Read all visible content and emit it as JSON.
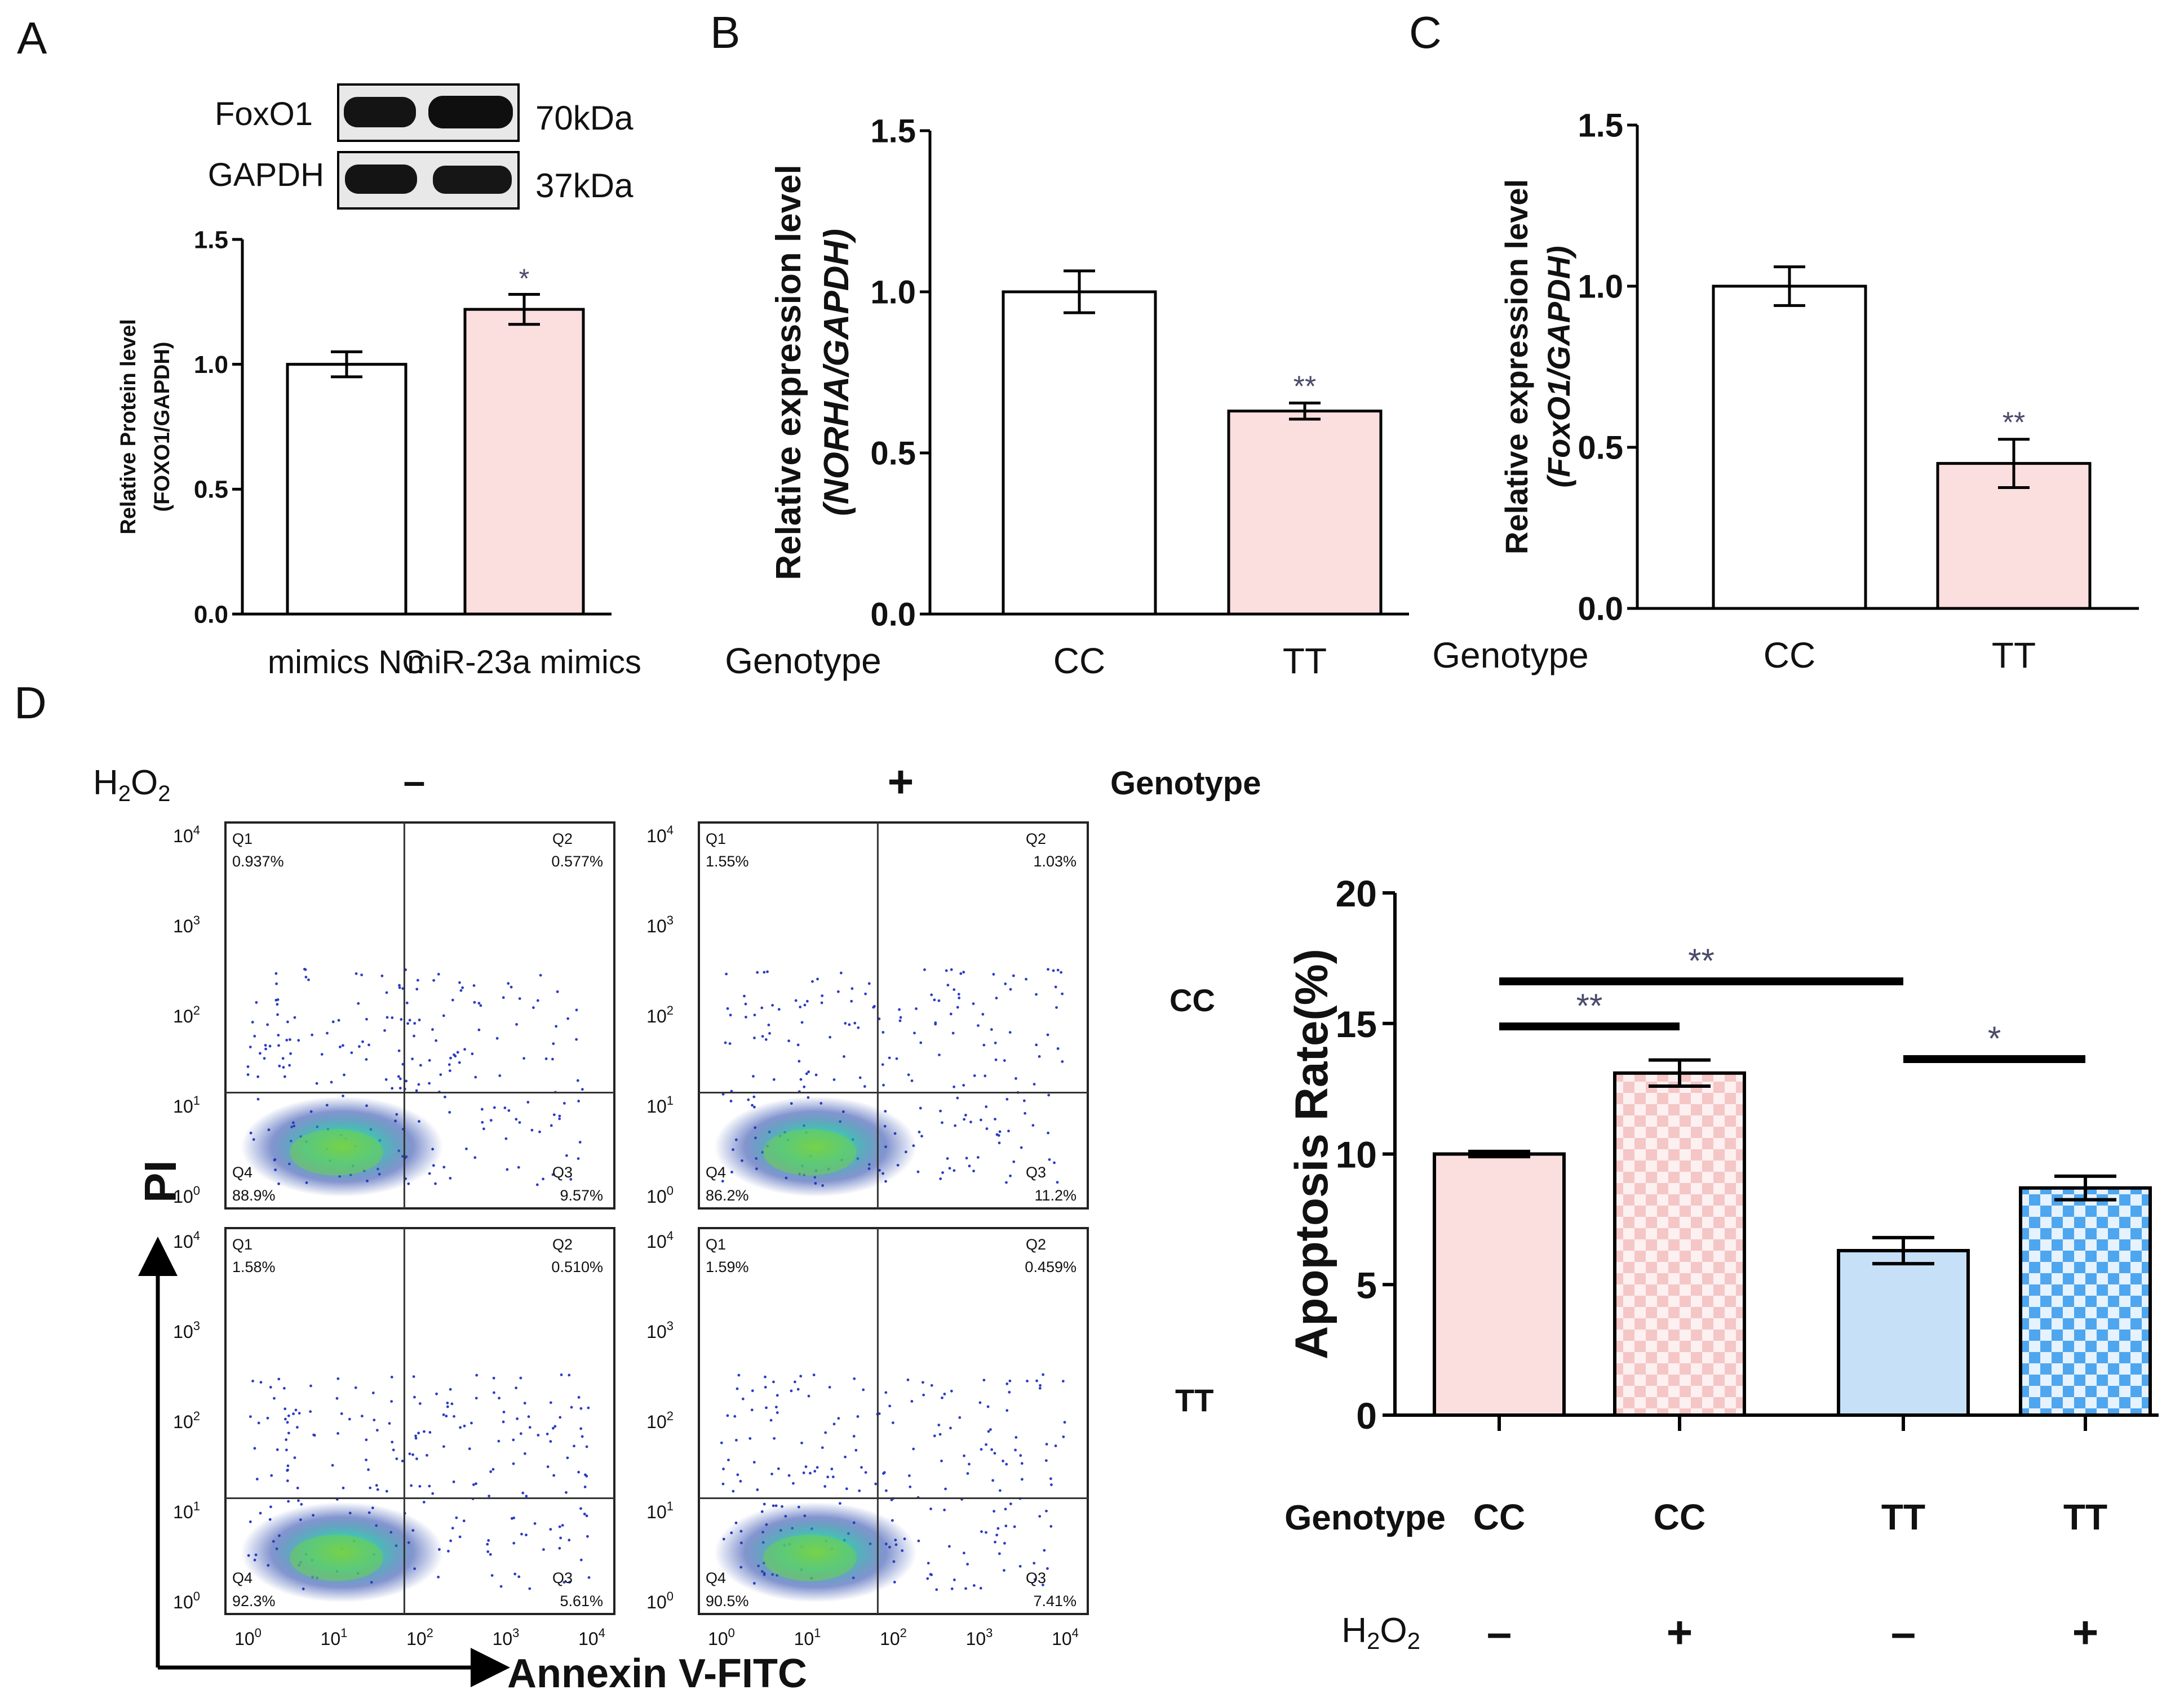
{
  "panels": {
    "A": "A",
    "B": "B",
    "C": "C",
    "D": "D"
  },
  "colors": {
    "pink": "#fbdede",
    "blue": "#c6e0f8",
    "pinkCheck": "#f5c9c9",
    "blueCheck": "#4ea6ef",
    "axis": "#000000",
    "sig": "#4a4a6a"
  },
  "western_blot": {
    "bands": [
      {
        "name": "FoxO1",
        "size": "70kDa"
      },
      {
        "name": "GAPDH",
        "size": "37kDa"
      }
    ]
  },
  "chart_data": [
    {
      "id": "A",
      "type": "bar",
      "categories": [
        "mimics NC",
        "miR-23a mimics"
      ],
      "values": [
        1.0,
        1.22
      ],
      "errors": [
        0.05,
        0.06
      ],
      "significance": [
        "",
        "*"
      ],
      "ylabel": [
        "Relative Protein level",
        "(FOXO1/GAPDH)"
      ],
      "yticks": [
        "0.0",
        "0.5",
        "1.0",
        "1.5"
      ],
      "ylim": [
        0,
        1.5
      ]
    },
    {
      "id": "B",
      "type": "bar",
      "categories": [
        "CC",
        "TT"
      ],
      "x_group_label": "Genotype",
      "values": [
        1.0,
        0.63
      ],
      "errors": [
        0.065,
        0.025
      ],
      "significance": [
        "",
        "**"
      ],
      "ylabel": [
        "Relative expression level",
        "(NORHA/GAPDH)"
      ],
      "yticks": [
        "0.0",
        "0.5",
        "1.0",
        "1.5"
      ],
      "ylim": [
        0,
        1.5
      ]
    },
    {
      "id": "C",
      "type": "bar",
      "categories": [
        "CC",
        "TT"
      ],
      "x_group_label": "Genotype",
      "values": [
        1.0,
        0.45
      ],
      "errors": [
        0.06,
        0.075
      ],
      "significance": [
        "",
        "**"
      ],
      "ylabel": [
        "Relative expression level",
        "(FoxO1/GAPDH)"
      ],
      "yticks": [
        "0.0",
        "0.5",
        "1.0",
        "1.5"
      ],
      "ylim": [
        0,
        1.5
      ]
    },
    {
      "id": "D",
      "type": "bar",
      "ylabel": "Apoptosis Rate(%)",
      "yticks": [
        "0",
        "5",
        "10",
        "15",
        "20"
      ],
      "ylim": [
        0,
        20
      ],
      "row_labels": [
        {
          "label": "Genotype",
          "values": [
            "CC",
            "CC",
            "TT",
            "TT"
          ]
        },
        {
          "label": "H2O2",
          "values": [
            "–",
            "+",
            "–",
            "+"
          ]
        }
      ],
      "values": [
        10.0,
        13.1,
        6.3,
        8.7
      ],
      "errors": [
        0.1,
        0.5,
        0.5,
        0.45
      ],
      "fill": [
        "pink",
        "pinkCheck",
        "blue",
        "blueCheck"
      ],
      "brackets": [
        {
          "from": 0,
          "to": 2,
          "label": "**"
        },
        {
          "from": 0,
          "to": 1,
          "label": "**"
        },
        {
          "from": 2,
          "to": 3,
          "label": "*"
        }
      ]
    }
  ],
  "flow": {
    "h2o2_label": "H2O2",
    "col_labels": [
      "–",
      "+"
    ],
    "genotype_header": "Genotype",
    "row_labels": [
      "CC",
      "TT"
    ],
    "x_axis_label": "Annexin V-FITC",
    "y_axis_label": "PI",
    "tick_labels": [
      "10",
      "10",
      "10",
      "10",
      "10"
    ],
    "tick_exps": [
      "0",
      "1",
      "2",
      "3",
      "4"
    ],
    "plots": [
      {
        "q1": "Q1",
        "q1v": "0.937%",
        "q2": "Q2",
        "q2v": "0.577%",
        "q3": "Q3",
        "q3v": "9.57%",
        "q4": "Q4",
        "q4v": "88.9%"
      },
      {
        "q1": "Q1",
        "q1v": "1.55%",
        "q2": "Q2",
        "q2v": "1.03%",
        "q3": "Q3",
        "q3v": "11.2%",
        "q4": "Q4",
        "q4v": "86.2%"
      },
      {
        "q1": "Q1",
        "q1v": "1.58%",
        "q2": "Q2",
        "q2v": "0.510%",
        "q3": "Q3",
        "q3v": "5.61%",
        "q4": "Q4",
        "q4v": "92.3%"
      },
      {
        "q1": "Q1",
        "q1v": "1.59%",
        "q2": "Q2",
        "q2v": "0.459%",
        "q3": "Q3",
        "q3v": "7.41%",
        "q4": "Q4",
        "q4v": "90.5%"
      }
    ]
  }
}
